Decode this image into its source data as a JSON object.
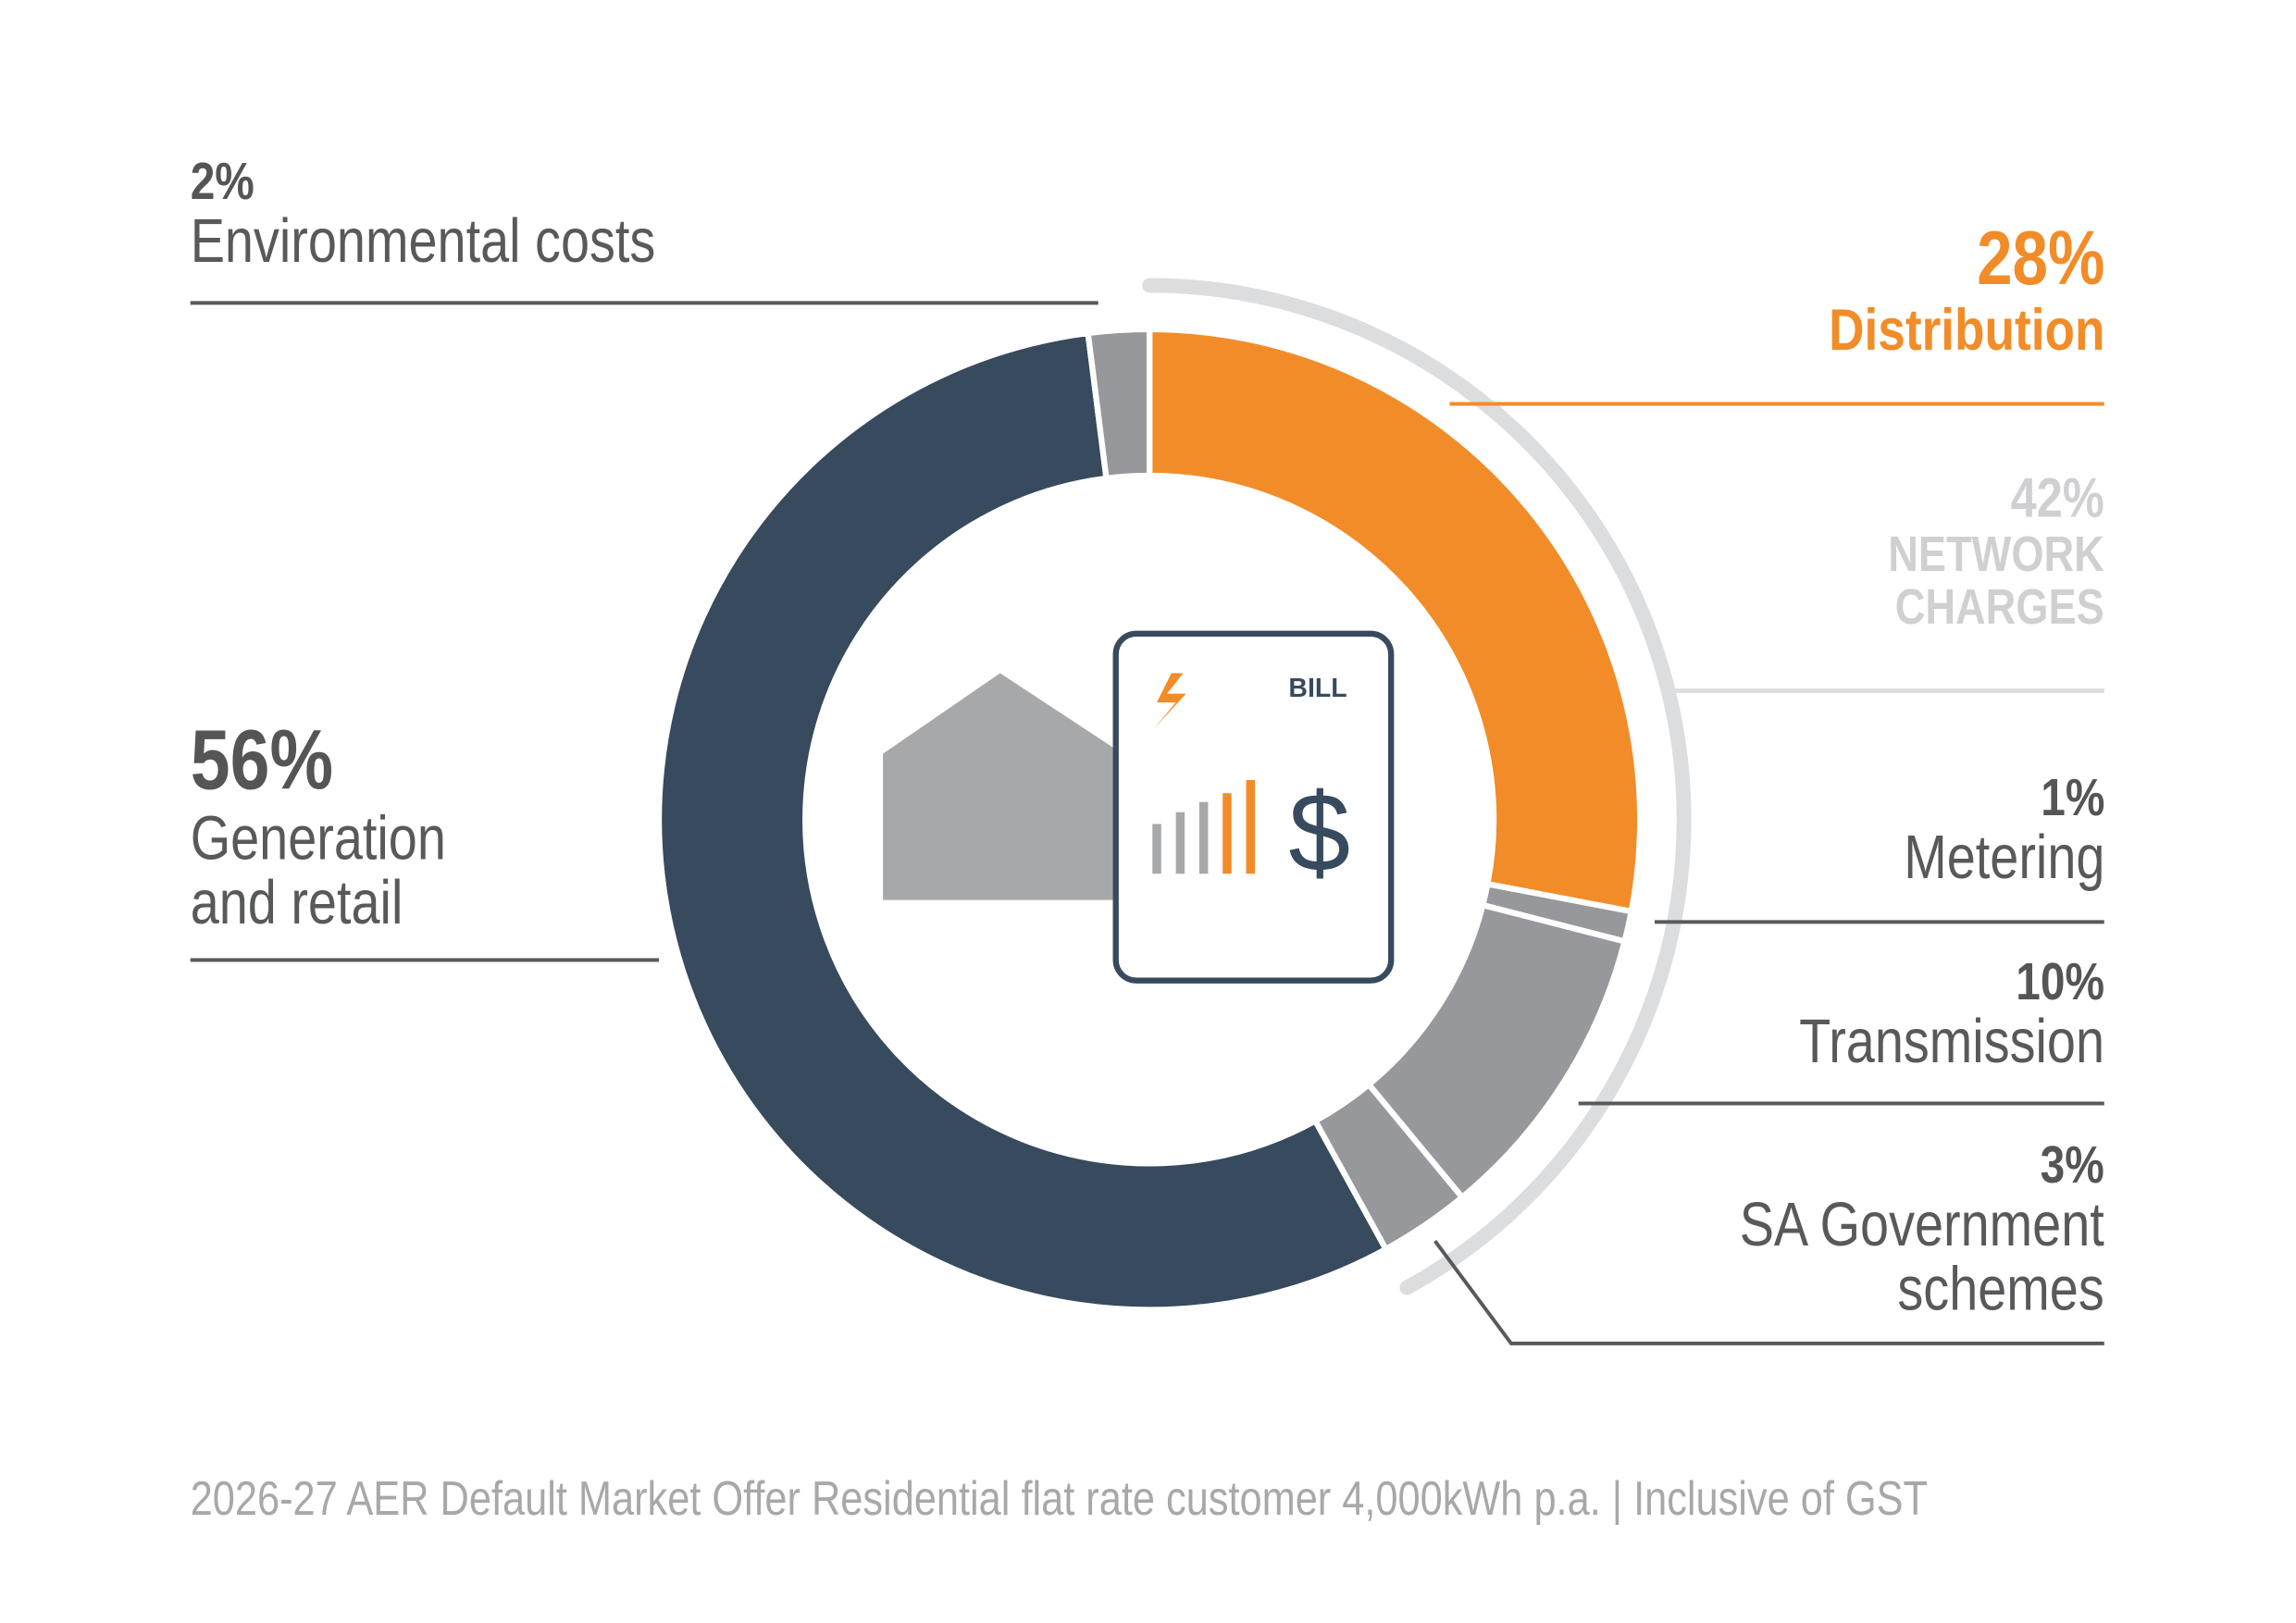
{
  "chart_data": {
    "type": "donut",
    "categories": [
      "Distribution",
      "Metering",
      "Transmission",
      "SA Government schemes",
      "Generation and retail",
      "Environmental costs"
    ],
    "values": [
      28,
      1,
      10,
      3,
      56,
      2
    ],
    "value_labels": [
      "28%",
      "1%",
      "10%",
      "3%",
      "56%",
      "2%"
    ],
    "colors": [
      "#f28c28",
      "#97989b",
      "#97989b",
      "#97989b",
      "#374a5e",
      "#97989b"
    ],
    "group": {
      "name": "NETWORK CHARGES",
      "value": 42,
      "value_label": "42%",
      "color": "#dcdddf"
    },
    "icon": {
      "label": "BILL",
      "symbol": "$"
    },
    "footnote": "2026-27 AER Default Market Offer Residential flat rate customer 4,000kWh p.a. | Inclusive of GST"
  }
}
